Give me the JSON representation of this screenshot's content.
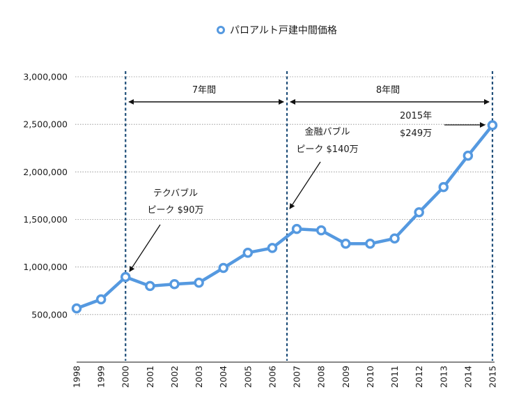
{
  "chart_data": {
    "type": "line",
    "title": "",
    "legend": {
      "position": "top",
      "entries": [
        "パロアルト戸建中間価格"
      ]
    },
    "xlabel": "",
    "ylabel": "",
    "x": [
      "1998",
      "1999",
      "2000",
      "2001",
      "2002",
      "2003",
      "2004",
      "2005",
      "2006",
      "2007",
      "2008",
      "2009",
      "2010",
      "2011",
      "2012",
      "2013",
      "2014",
      "2015"
    ],
    "series": [
      {
        "name": "パロアルト戸建中間価格",
        "color": "#5599e0",
        "values": [
          565000,
          660000,
          895000,
          800000,
          820000,
          835000,
          990000,
          1150000,
          1200000,
          1400000,
          1385000,
          1245000,
          1245000,
          1300000,
          1575000,
          1840000,
          2170000,
          2490000
        ]
      }
    ],
    "ylim": [
      0,
      3000000
    ],
    "yticks": [
      500000,
      1000000,
      1500000,
      2000000,
      2500000,
      3000000
    ],
    "ytick_labels": [
      "500,000",
      "1,000,000",
      "1,500,000",
      "2,000,000",
      "2,500,000",
      "3,000,000"
    ],
    "grid": "horizontal-dotted",
    "vlines": [
      {
        "x_index": 2,
        "color": "#1f4e79"
      },
      {
        "x_index": 8.6,
        "color": "#1f4e79"
      },
      {
        "x_index": 17,
        "color": "#1f4e79"
      }
    ],
    "spans": [
      {
        "from_index": 2,
        "to_index": 8.6,
        "label": "7年間"
      },
      {
        "from_index": 8.6,
        "to_index": 17,
        "label": "8年間"
      }
    ],
    "annotations": [
      {
        "lines": [
          "テクバブル",
          "ピーク $90万"
        ],
        "target_index": 2,
        "target_value": 895000
      },
      {
        "lines": [
          "金融バブル",
          "ピーク $140万"
        ],
        "target_index": 8.6,
        "target_value": 1600000
      },
      {
        "lines": [
          "2015年",
          "$249万"
        ],
        "target_index": 17,
        "target_value": 2490000
      }
    ]
  }
}
